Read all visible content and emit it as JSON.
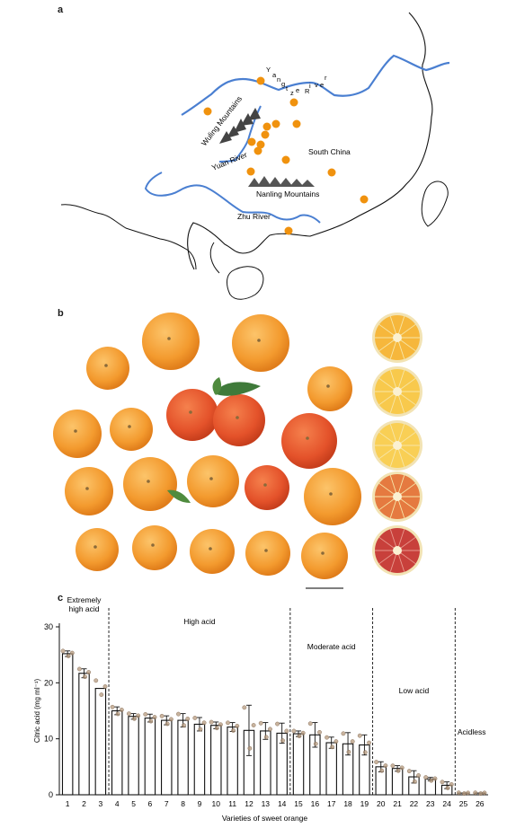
{
  "panels": {
    "a": {
      "label": "a"
    },
    "b": {
      "label": "b"
    },
    "c": {
      "label": "c"
    }
  },
  "map": {
    "labels": {
      "region": "South China",
      "mountains_1": "Wuling Mountains",
      "mountains_2": "Nanling Mountains",
      "river_1": "Yuan River",
      "river_2": "Zhu River",
      "river_3_letters": [
        "Y",
        "a",
        "n",
        "g",
        "t",
        "z",
        "e",
        " ",
        "R",
        "i",
        "v",
        "e",
        "r"
      ]
    },
    "colors": {
      "river": "#4a7fd1",
      "dot": "#f0920e",
      "coast": "#111111",
      "mountain": "#444444"
    }
  },
  "oranges": {
    "colors": {
      "navel": "#f6a33a",
      "blood": "#e5532b",
      "slice_blood": "#c8403b",
      "slice_light": "#f9d572"
    },
    "scale_bar": true
  },
  "chart_data": {
    "type": "bar",
    "ylabel": "Citric acid (mg ml⁻¹)",
    "xlabel": "Varieties of sweet orange",
    "ylim": [
      0,
      30
    ],
    "yticks": [
      0,
      10,
      20,
      30
    ],
    "categories": [
      "1",
      "2",
      "3",
      "4",
      "5",
      "6",
      "7",
      "8",
      "9",
      "10",
      "11",
      "12",
      "13",
      "14",
      "15",
      "16",
      "17",
      "18",
      "19",
      "20",
      "21",
      "22",
      "23",
      "24",
      "25",
      "26"
    ],
    "values": [
      25.2,
      21.7,
      19.0,
      15.0,
      14.0,
      13.7,
      13.3,
      13.3,
      12.6,
      12.4,
      12.1,
      11.5,
      11.4,
      11.0,
      10.9,
      10.7,
      9.3,
      9.1,
      8.9,
      5.0,
      4.7,
      3.2,
      2.8,
      1.7,
      0.3,
      0.3
    ],
    "errors": [
      0.5,
      0.8,
      0,
      0.7,
      0.5,
      0.7,
      0.8,
      1.2,
      1.2,
      0.6,
      0.8,
      4.5,
      1.5,
      1.8,
      0.5,
      2.2,
      1.0,
      2.0,
      1.8,
      0.9,
      0.5,
      1.1,
      0.3,
      0.6,
      0,
      0
    ],
    "groups": [
      {
        "label": "Extremely high acid",
        "lines": [
          "Extremely",
          "high acid"
        ],
        "start": 1,
        "end": 3
      },
      {
        "label": "High acid",
        "lines": [
          "High acid"
        ],
        "start": 4,
        "end": 14
      },
      {
        "label": "Moderate acid",
        "lines": [
          "Moderate acid"
        ],
        "start": 15,
        "end": 19
      },
      {
        "label": "Low acid",
        "lines": [
          "Low acid"
        ],
        "start": 20,
        "end": 24
      },
      {
        "label": "Acidless",
        "lines": [
          "Acidless"
        ],
        "start": 25,
        "end": 26
      }
    ],
    "points_color": "#b5997e"
  }
}
